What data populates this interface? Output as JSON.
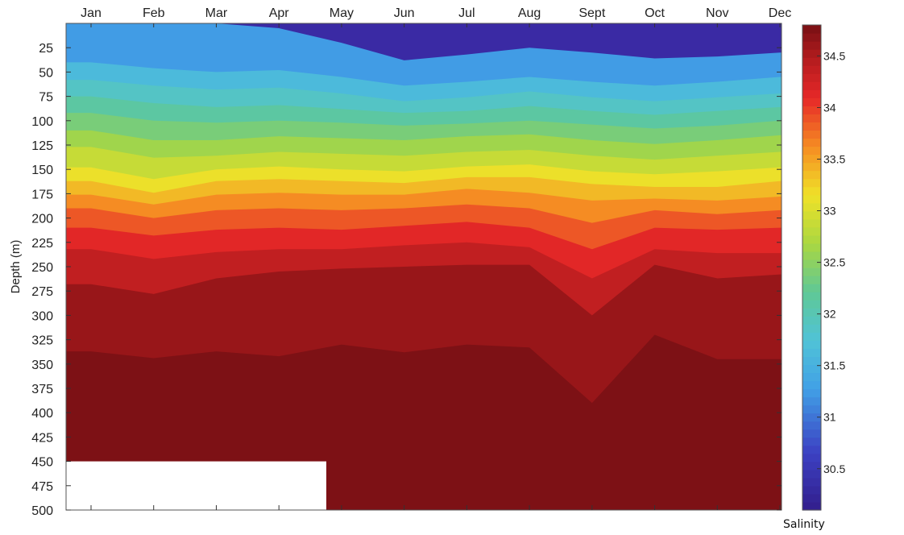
{
  "chart_data": {
    "type": "heatmap",
    "title": "",
    "xlabel": "",
    "ylabel": "Depth (m)",
    "x_ticks": [
      "Jan",
      "Feb",
      "Mar",
      "Apr",
      "May",
      "Jun",
      "Jul",
      "Aug",
      "Sept",
      "Oct",
      "Nov",
      "Dec"
    ],
    "y_ticks": [
      25,
      50,
      75,
      100,
      125,
      150,
      175,
      200,
      225,
      250,
      275,
      300,
      325,
      350,
      375,
      400,
      425,
      450,
      475,
      500
    ],
    "ylim": [
      500,
      0
    ],
    "y_inverted": true,
    "colorbar": {
      "label": "Salinity",
      "range": [
        30.1,
        34.8
      ],
      "ticks": [
        30.5,
        31,
        31.5,
        32,
        32.5,
        33,
        33.5,
        34,
        34.5
      ],
      "colormap": "jet"
    },
    "contour_levels": [
      31.0,
      31.5,
      31.75,
      32.0,
      32.25,
      32.5,
      32.75,
      33.0,
      33.25,
      33.5,
      33.75,
      34.0,
      34.25,
      34.5,
      34.75
    ],
    "isohaline_depths_m": {
      "months": [
        "Jan",
        "Feb",
        "Mar",
        "Apr",
        "May",
        "Jun",
        "Jul",
        "Aug",
        "Sept",
        "Oct",
        "Nov",
        "Dec"
      ],
      "levels": [
        {
          "salinity": 31.0,
          "depth": [
            0,
            0,
            0,
            5,
            20,
            38,
            32,
            25,
            30,
            36,
            34,
            30
          ]
        },
        {
          "salinity": 31.5,
          "depth": [
            40,
            46,
            50,
            48,
            55,
            64,
            60,
            55,
            60,
            64,
            60,
            55
          ]
        },
        {
          "salinity": 31.75,
          "depth": [
            58,
            64,
            68,
            66,
            72,
            80,
            76,
            70,
            76,
            80,
            76,
            72
          ]
        },
        {
          "salinity": 32.0,
          "depth": [
            75,
            82,
            86,
            84,
            88,
            92,
            90,
            85,
            90,
            94,
            90,
            86
          ]
        },
        {
          "salinity": 32.25,
          "depth": [
            92,
            100,
            102,
            100,
            102,
            105,
            103,
            100,
            104,
            108,
            105,
            100
          ]
        },
        {
          "salinity": 32.5,
          "depth": [
            110,
            120,
            120,
            116,
            118,
            120,
            116,
            114,
            120,
            124,
            120,
            115
          ]
        },
        {
          "salinity": 32.75,
          "depth": [
            127,
            138,
            136,
            132,
            134,
            136,
            132,
            130,
            136,
            140,
            136,
            132
          ]
        },
        {
          "salinity": 33.0,
          "depth": [
            148,
            160,
            150,
            147,
            150,
            152,
            147,
            145,
            152,
            155,
            152,
            148
          ]
        },
        {
          "salinity": 33.25,
          "depth": [
            162,
            174,
            162,
            160,
            162,
            164,
            158,
            158,
            165,
            168,
            168,
            162
          ]
        },
        {
          "salinity": 33.5,
          "depth": [
            176,
            186,
            176,
            174,
            176,
            176,
            170,
            174,
            182,
            180,
            182,
            178
          ]
        },
        {
          "salinity": 33.75,
          "depth": [
            190,
            200,
            192,
            190,
            192,
            190,
            186,
            190,
            205,
            192,
            196,
            192
          ]
        },
        {
          "salinity": 34.0,
          "depth": [
            210,
            218,
            212,
            210,
            212,
            208,
            204,
            210,
            232,
            210,
            212,
            210
          ]
        },
        {
          "salinity": 34.25,
          "depth": [
            232,
            242,
            235,
            232,
            232,
            228,
            225,
            230,
            262,
            232,
            236,
            236
          ]
        },
        {
          "salinity": 34.5,
          "depth": [
            268,
            278,
            262,
            255,
            252,
            250,
            248,
            248,
            300,
            248,
            262,
            258
          ]
        },
        {
          "salinity": 34.75,
          "depth": [
            337,
            344,
            337,
            342,
            330,
            338,
            330,
            333,
            390,
            320,
            345,
            345
          ]
        }
      ]
    },
    "no_data_region": {
      "months": [
        "Jan",
        "May"
      ],
      "depth_range": [
        450,
        500
      ]
    }
  }
}
